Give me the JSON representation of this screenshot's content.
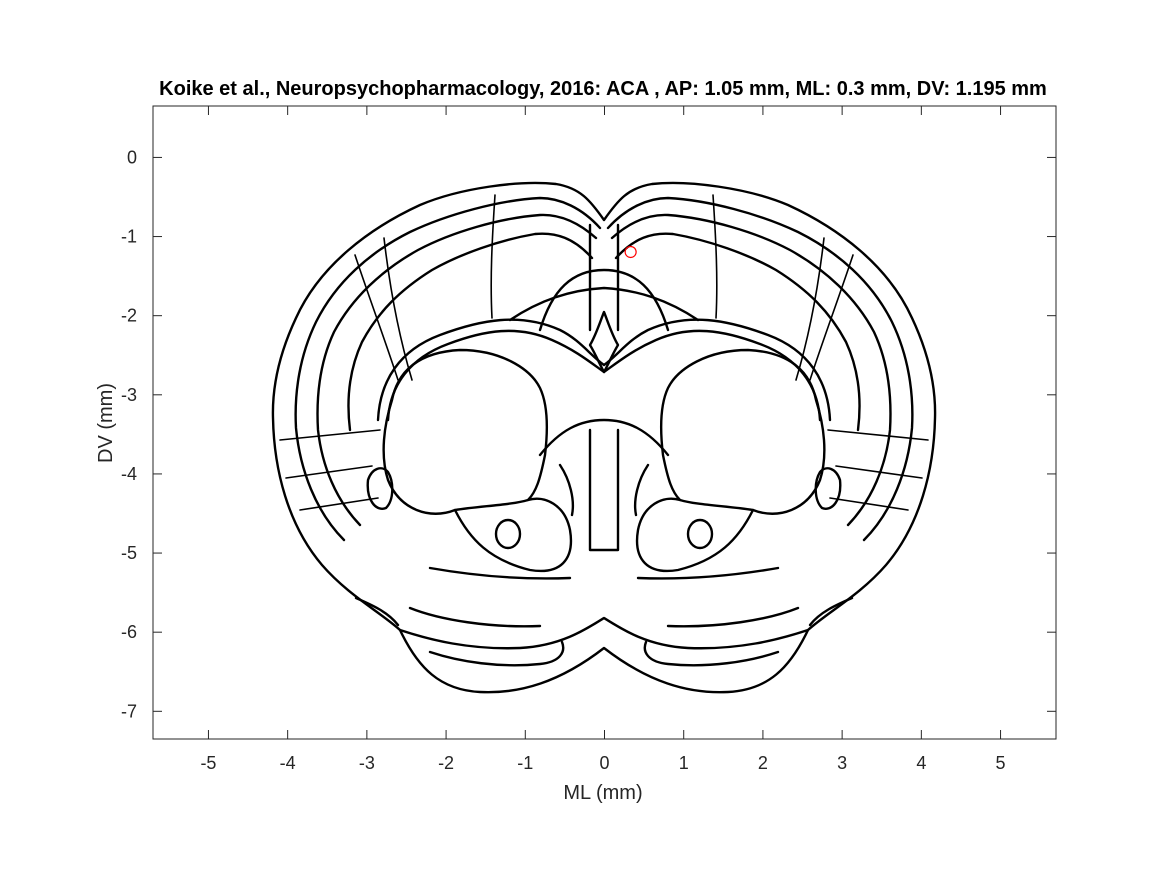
{
  "chart_data": {
    "type": "scatter",
    "title": "Koike et al., Neuropsychopharmacology, 2016: ACA , AP: 1.05 mm, ML: 0.3 mm, DV: 1.195 mm",
    "xlabel": "ML (mm)",
    "ylabel": "DV (mm)",
    "xlim": [
      -5.7,
      5.7
    ],
    "ylim": [
      -7.35,
      0.65
    ],
    "xticks": [
      -5,
      -4,
      -3,
      -2,
      -1,
      0,
      1,
      2,
      3,
      4,
      5
    ],
    "yticks": [
      0,
      -1,
      -2,
      -3,
      -4,
      -5,
      -6,
      -7
    ],
    "xtick_labels": [
      "-5",
      "-4",
      "-3",
      "-2",
      "-1",
      "0",
      "1",
      "2",
      "3",
      "4",
      "5"
    ],
    "ytick_labels": [
      "0",
      "-1",
      "-2",
      "-3",
      "-4",
      "-5",
      "-6",
      "-7"
    ],
    "grid": false,
    "series": [
      {
        "marker": "circle",
        "color": "#ff0000",
        "points": [
          {
            "x": 0.33,
            "y": -1.195
          }
        ]
      }
    ],
    "background_image": "coronal-brain-atlas-outline"
  }
}
